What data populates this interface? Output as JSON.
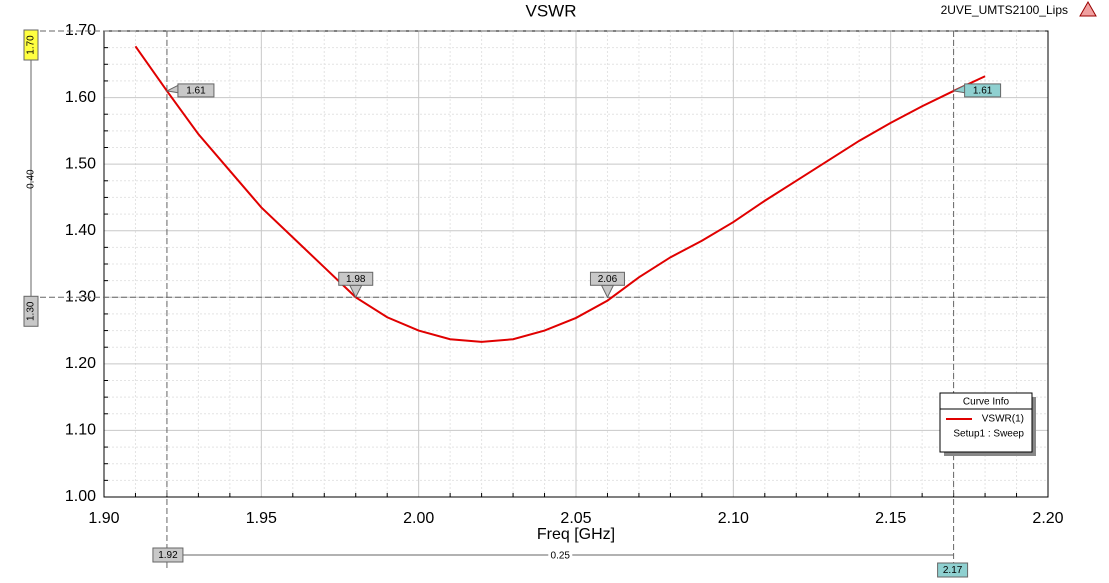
{
  "chart_data": {
    "type": "line",
    "title": "VSWR",
    "project": "2UVE_UMTS2100_Lips",
    "xlabel": "Freq [GHz]",
    "x": [
      1.91,
      1.92,
      1.93,
      1.94,
      1.95,
      1.96,
      1.97,
      1.98,
      1.99,
      2.0,
      2.01,
      2.02,
      2.03,
      2.04,
      2.05,
      2.06,
      2.07,
      2.08,
      2.09,
      2.1,
      2.11,
      2.12,
      2.13,
      2.14,
      2.15,
      2.16,
      2.17,
      2.18
    ],
    "series": [
      {
        "name": "VSWR(1)",
        "color": "#e00000",
        "values": [
          1.677,
          1.61,
          1.545,
          1.49,
          1.435,
          1.39,
          1.345,
          1.3,
          1.27,
          1.25,
          1.237,
          1.233,
          1.237,
          1.25,
          1.269,
          1.295,
          1.33,
          1.36,
          1.385,
          1.413,
          1.445,
          1.475,
          1.505,
          1.535,
          1.562,
          1.587,
          1.61,
          1.632
        ]
      }
    ],
    "xlim": [
      1.9,
      2.2
    ],
    "ylim": [
      1.0,
      1.7
    ],
    "xticks": [
      {
        "value": 1.9,
        "label": "1.90"
      },
      {
        "value": 1.95,
        "label": "1.95"
      },
      {
        "value": 2.0,
        "label": "2.00"
      },
      {
        "value": 2.05,
        "label": "2.05"
      },
      {
        "value": 2.1,
        "label": "2.10"
      },
      {
        "value": 2.15,
        "label": "2.15"
      },
      {
        "value": 2.2,
        "label": "2.20"
      }
    ],
    "yticks": [
      {
        "value": 1.0,
        "label": "1.00"
      },
      {
        "value": 1.1,
        "label": "1.10"
      },
      {
        "value": 1.2,
        "label": "1.20"
      },
      {
        "value": 1.3,
        "label": "1.30"
      },
      {
        "value": 1.4,
        "label": "1.40"
      },
      {
        "value": 1.5,
        "label": "1.50"
      },
      {
        "value": 1.6,
        "label": "1.60"
      },
      {
        "value": 1.7,
        "label": "1.70"
      }
    ],
    "grid": true,
    "x_minor": 5,
    "y_minor": 4,
    "legend": {
      "title": "Curve Info",
      "setup": "Setup1 : Sweep"
    },
    "markers": [
      {
        "x": 1.92,
        "y": 1.61,
        "show": "y",
        "color": "#c8c8c8"
      },
      {
        "x": 1.98,
        "y": 1.3,
        "show": "x",
        "color": "#c8c8c8"
      },
      {
        "x": 2.06,
        "y": 1.3,
        "show": "x",
        "color": "#c8c8c8"
      },
      {
        "x": 2.17,
        "y": 1.61,
        "show": "y",
        "color": "#8fd0d0"
      }
    ],
    "y_markers": [
      {
        "value": 1.7,
        "label": "1.70",
        "color": "#ffff40"
      },
      {
        "value": 1.3,
        "label": "1.30",
        "color": "#c8c8c8"
      }
    ],
    "y_delta": {
      "value": 0.4,
      "label": "0.40"
    },
    "x_markers": [
      {
        "value": 1.92,
        "color": "#c8c8c8"
      },
      {
        "value": 2.17,
        "color": "#8fd0d0"
      }
    ],
    "x_delta": 0.25
  }
}
